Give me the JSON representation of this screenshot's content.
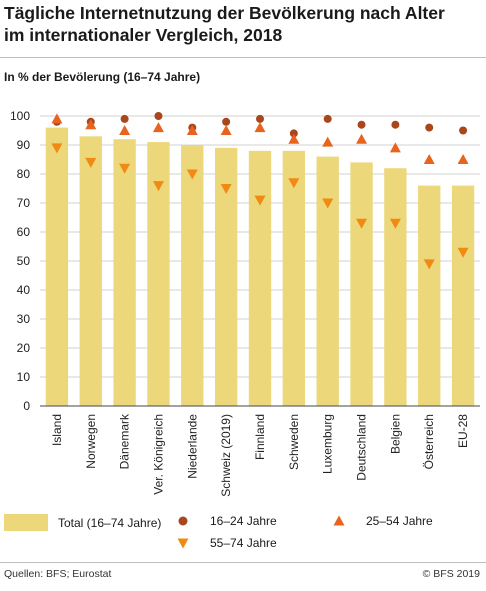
{
  "title_line1": "Tägliche Internetnutzung der Bevölkerung nach Alter",
  "title_line2": "im internationaler Vergleich, 2018",
  "subtitle": "In % der Bevölerung (16–74 Jahre)",
  "source": "Quellen: BFS; Eurostat",
  "copyright": "© BFS 2019",
  "colors": {
    "bar": "#ecd77a",
    "age_16_24": "#a8461c",
    "age_25_54": "#e8641e",
    "age_55_74": "#f08a12",
    "grid": "#d0d0d0"
  },
  "chart_data": {
    "type": "bar",
    "title": "Tägliche Internetnutzung der Bevölkerung nach Alter im internationaler Vergleich, 2018",
    "ylabel": "In % der Bevölerung (16–74 Jahre)",
    "xlabel": "",
    "ylim": [
      0,
      100
    ],
    "yticks": [
      0,
      10,
      20,
      30,
      40,
      50,
      60,
      70,
      80,
      90,
      100
    ],
    "grid": true,
    "legend_position": "bottom",
    "categories": [
      "Island",
      "Norwegen",
      "Dänemark",
      "Ver. Königreich",
      "Niederlande",
      "Schweiz (2019)",
      "Finnland",
      "Schweden",
      "Luxemburg",
      "Deutschland",
      "Belgien",
      "Österreich",
      "EU-28"
    ],
    "series": [
      {
        "name": "Total (16–74 Jahre)",
        "type": "bar",
        "values": [
          96,
          93,
          92,
          91,
          90,
          89,
          88,
          88,
          86,
          84,
          82,
          76,
          76
        ]
      },
      {
        "name": "16–24 Jahre",
        "type": "scatter",
        "marker": "circle",
        "values": [
          98,
          98,
          99,
          100,
          96,
          98,
          99,
          94,
          99,
          97,
          97,
          96,
          95
        ]
      },
      {
        "name": "25–54 Jahre",
        "type": "scatter",
        "marker": "triangle-up",
        "values": [
          99,
          97,
          95,
          96,
          95,
          95,
          96,
          92,
          91,
          92,
          89,
          85,
          85
        ]
      },
      {
        "name": "55–74 Jahre",
        "type": "scatter",
        "marker": "triangle-down",
        "values": [
          89,
          84,
          82,
          76,
          80,
          75,
          71,
          77,
          70,
          63,
          63,
          49,
          53
        ]
      }
    ]
  }
}
